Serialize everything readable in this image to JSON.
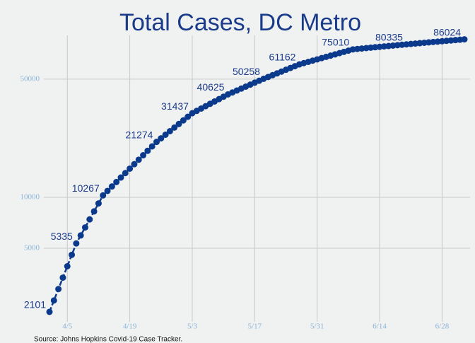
{
  "chart_data": {
    "type": "line",
    "title": "Total Cases, DC Metro",
    "source": "Source: Johns Hopkins Covid-19 Case Tracker.",
    "categories": [
      "4/1",
      "4/2",
      "4/3",
      "4/4",
      "4/5",
      "4/6",
      "4/7",
      "4/8",
      "4/9",
      "4/10",
      "4/11",
      "4/12",
      "4/13",
      "4/14",
      "4/15",
      "4/16",
      "4/17",
      "4/18",
      "4/19",
      "4/20",
      "4/21",
      "4/22",
      "4/23",
      "4/24",
      "4/25",
      "4/26",
      "4/27",
      "4/28",
      "4/29",
      "4/30",
      "5/1",
      "5/2",
      "5/3",
      "5/4",
      "5/5",
      "5/6",
      "5/7",
      "5/8",
      "5/9",
      "5/10",
      "5/11",
      "5/12",
      "5/13",
      "5/14",
      "5/15",
      "5/16",
      "5/17",
      "5/18",
      "5/19",
      "5/20",
      "5/21",
      "5/22",
      "5/23",
      "5/24",
      "5/25",
      "5/26",
      "5/27",
      "5/28",
      "5/29",
      "5/30",
      "5/31",
      "6/1",
      "6/2",
      "6/3",
      "6/4",
      "6/5",
      "6/6",
      "6/7",
      "6/8",
      "6/9",
      "6/10",
      "6/11",
      "6/12",
      "6/13",
      "6/14",
      "6/15",
      "6/16",
      "6/17",
      "6/18",
      "6/19",
      "6/20",
      "6/21",
      "6/22",
      "6/23",
      "6/24",
      "6/25",
      "6/26",
      "6/27",
      "6/28",
      "6/29",
      "6/30",
      "7/1",
      "7/2",
      "7/3"
    ],
    "series": [
      {
        "name": "Total Cases",
        "color": "#0b3a8c",
        "values": [
          2101,
          2454,
          2866,
          3348,
          3910,
          4567,
          5335,
          5950,
          6636,
          7401,
          8255,
          9206,
          10267,
          10910,
          11593,
          12318,
          13089,
          13908,
          14779,
          15704,
          16687,
          17731,
          18841,
          20020,
          21274,
          22338,
          23455,
          24628,
          25860,
          27154,
          28513,
          29940,
          31437,
          32461,
          33518,
          34610,
          35737,
          36901,
          38103,
          39344,
          40625,
          41720,
          42845,
          44000,
          45186,
          46404,
          47655,
          48940,
          50258,
          51507,
          52786,
          54097,
          55441,
          56818,
          58229,
          59675,
          61162,
          62211,
          63279,
          64365,
          65469,
          66592,
          67735,
          68897,
          70079,
          71282,
          72505,
          73749,
          75010,
          75454,
          75898,
          76341,
          76785,
          77229,
          77672,
          78116,
          78560,
          79004,
          79447,
          79891,
          80335,
          80773,
          81210,
          81648,
          82086,
          82523,
          82961,
          83399,
          83836,
          84274,
          84712,
          85149,
          85587,
          86024
        ],
        "value_labels": [
          "2101",
          null,
          null,
          null,
          null,
          null,
          "5335",
          null,
          null,
          null,
          null,
          null,
          "10267",
          null,
          null,
          null,
          null,
          null,
          null,
          null,
          null,
          null,
          null,
          null,
          "21274",
          null,
          null,
          null,
          null,
          null,
          null,
          null,
          "31437",
          null,
          null,
          null,
          null,
          null,
          null,
          null,
          "40625",
          null,
          null,
          null,
          null,
          null,
          null,
          null,
          "50258",
          null,
          null,
          null,
          null,
          null,
          null,
          null,
          "61162",
          null,
          null,
          null,
          null,
          null,
          null,
          null,
          null,
          null,
          null,
          null,
          "75010",
          null,
          null,
          null,
          null,
          null,
          null,
          null,
          null,
          null,
          null,
          null,
          "80335",
          null,
          null,
          null,
          null,
          null,
          null,
          null,
          null,
          null,
          null,
          null,
          null,
          "86024"
        ]
      }
    ],
    "xticks": [
      "4/5",
      "4/19",
      "5/3",
      "5/17",
      "5/31",
      "6/14",
      "6/28"
    ],
    "ylim": [
      1835,
      90800
    ],
    "yticks": [
      5000,
      10000,
      50000
    ],
    "log_y": true,
    "grid": true
  }
}
